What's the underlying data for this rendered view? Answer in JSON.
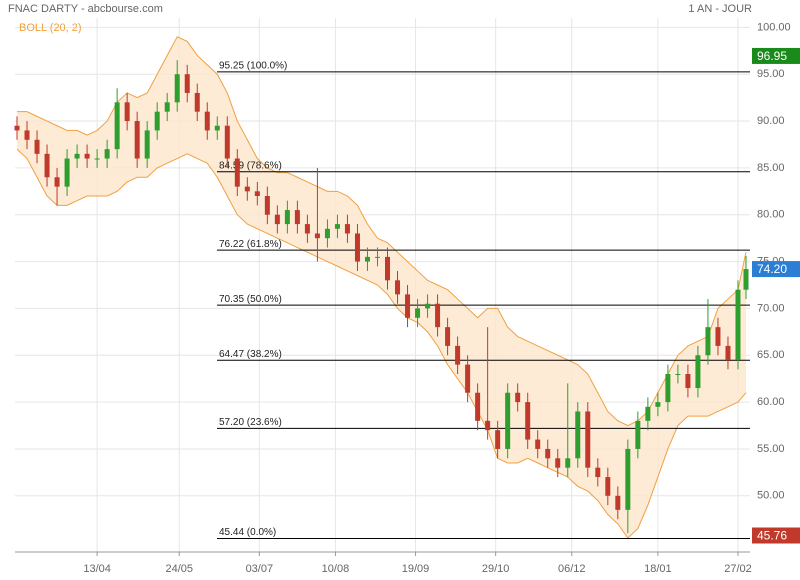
{
  "chart_data": {
    "type": "candlestick",
    "title": "FNAC DARTY - abcbourse.com",
    "period": "1 AN - JOUR",
    "indicator": {
      "name": "BOLL (20, 2)",
      "color": "#f0a040",
      "fill": "#fde6cc"
    },
    "up_color": "#2e9e2e",
    "down_color": "#c0392b",
    "grid": true,
    "xlim": [
      -41,
      326
    ],
    "xticks": [
      {
        "value": 0,
        "label": "13/04"
      },
      {
        "value": 41,
        "label": "24/05"
      },
      {
        "value": 81,
        "label": "03/07"
      },
      {
        "value": 119,
        "label": "10/08"
      },
      {
        "value": 159,
        "label": "19/09"
      },
      {
        "value": 199,
        "label": "29/10"
      },
      {
        "value": 237,
        "label": "06/12"
      },
      {
        "value": 280,
        "label": "18/01"
      },
      {
        "value": 320,
        "label": "27/02"
      }
    ],
    "ylim": [
      44,
      101
    ],
    "yticks": [
      {
        "value": 100,
        "label": "100.00"
      },
      {
        "value": 95,
        "label": "95.00"
      },
      {
        "value": 90,
        "label": "90.00"
      },
      {
        "value": 85,
        "label": "85.00"
      },
      {
        "value": 80,
        "label": "80.00"
      },
      {
        "value": 75,
        "label": "75.00"
      },
      {
        "value": 70,
        "label": "70.00"
      },
      {
        "value": 65,
        "label": "65.00"
      },
      {
        "value": 60,
        "label": "60.00"
      },
      {
        "value": 55,
        "label": "55.00"
      },
      {
        "value": 50,
        "label": "50.00"
      }
    ],
    "fib_levels": [
      {
        "value": 95.25,
        "label": "95.25  (100.0%)"
      },
      {
        "value": 84.59,
        "label": "84.59  (78.6%)"
      },
      {
        "value": 76.22,
        "label": "76.22  (61.8%)"
      },
      {
        "value": 70.35,
        "label": "70.35  (50.0%)"
      },
      {
        "value": 64.47,
        "label": "64.47  (38.2%)"
      },
      {
        "value": 57.2,
        "label": "57.20  (23.6%)"
      },
      {
        "value": 45.44,
        "label": "45.44  (0.0%)"
      }
    ],
    "badges": [
      {
        "value": 96.95,
        "label": "96.95",
        "color": "#1a8a1a"
      },
      {
        "value": 74.2,
        "label": "74.20",
        "color": "#2a7fd4"
      },
      {
        "value": 45.76,
        "label": "45.76",
        "color": "#c0392b"
      }
    ],
    "x": [
      -40,
      -35,
      -30,
      -25,
      -20,
      -15,
      -10,
      -5,
      0,
      5,
      10,
      15,
      20,
      25,
      30,
      35,
      40,
      45,
      50,
      55,
      60,
      65,
      70,
      75,
      80,
      85,
      90,
      95,
      100,
      105,
      110,
      115,
      120,
      125,
      130,
      135,
      140,
      145,
      150,
      155,
      160,
      165,
      170,
      175,
      180,
      185,
      190,
      195,
      200,
      205,
      210,
      215,
      220,
      225,
      230,
      235,
      240,
      245,
      250,
      255,
      260,
      265,
      270,
      275,
      280,
      285,
      290,
      295,
      300,
      305,
      310,
      315,
      320,
      324
    ],
    "open": [
      89.5,
      89,
      88,
      86.5,
      84,
      83,
      86,
      86.5,
      86,
      86,
      87,
      92,
      90,
      86,
      89,
      91,
      92,
      95,
      93,
      91,
      89,
      89.5,
      86,
      83,
      82.5,
      82,
      80,
      79,
      80.5,
      79,
      78,
      77.5,
      78.5,
      79,
      78,
      75,
      75.5,
      75.5,
      73,
      71.5,
      69,
      70,
      70.5,
      68,
      66,
      64,
      61,
      58,
      57,
      55,
      61,
      60,
      56,
      55,
      54,
      53,
      54,
      59,
      53,
      52,
      50,
      48.5,
      55,
      58,
      59.5,
      60,
      63,
      63,
      61.5,
      65,
      68,
      66,
      64.5,
      72
    ],
    "high": [
      90.5,
      90,
      89,
      87.5,
      85,
      87,
      87.5,
      87.5,
      87,
      88,
      93.5,
      93,
      91,
      90,
      92,
      93,
      96.5,
      96,
      94,
      92,
      90.5,
      90.5,
      87,
      84,
      83.5,
      83,
      81,
      81.5,
      81.5,
      80,
      85,
      79.5,
      80,
      80,
      79,
      76.5,
      76.5,
      76.5,
      74,
      72.5,
      71,
      71.5,
      71.5,
      69,
      67,
      65,
      62,
      68,
      58,
      62,
      62,
      61,
      57,
      56,
      55,
      62,
      60,
      60,
      54,
      53,
      51,
      56,
      59,
      60.5,
      61,
      64,
      64,
      64,
      66,
      71,
      69,
      67,
      73,
      75.6
    ],
    "low": [
      88,
      87,
      85.5,
      83,
      81,
      82,
      85,
      85,
      85,
      85,
      86,
      89,
      85,
      85,
      88,
      90,
      91,
      92,
      90,
      88,
      88,
      85,
      82,
      81.5,
      81,
      79,
      78,
      78,
      78,
      77,
      75,
      76.5,
      77.5,
      77,
      74,
      74,
      74.5,
      72,
      70.5,
      68,
      68,
      69,
      67,
      65,
      63,
      60,
      57,
      56,
      54,
      54,
      59,
      55,
      54,
      53,
      52,
      52,
      53,
      52,
      51,
      49,
      47.5,
      46,
      54,
      57,
      58.5,
      59,
      62,
      60.5,
      60.5,
      64,
      65,
      63.5,
      63.5,
      71
    ],
    "close": [
      89,
      88,
      86.5,
      84,
      83,
      86,
      86.5,
      86,
      86,
      87,
      92,
      90,
      86,
      89,
      91,
      92,
      95,
      93,
      91,
      89,
      89.5,
      86,
      83,
      82.5,
      82,
      80,
      79,
      80.5,
      79,
      78,
      77.5,
      78.5,
      79,
      78,
      75,
      75.5,
      75.5,
      73,
      71.5,
      69,
      70,
      70.5,
      68,
      66,
      64,
      61,
      58,
      57,
      55,
      61,
      60,
      56,
      55,
      54,
      53,
      54,
      59,
      53,
      52,
      50,
      48.5,
      55,
      58,
      59.5,
      60,
      63,
      63,
      61.5,
      65,
      68,
      66,
      64.5,
      72,
      74.2
    ],
    "bollinger": {
      "upper": [
        91,
        91,
        90.5,
        90,
        89.5,
        89,
        89,
        88.5,
        89,
        90,
        92,
        93,
        92.5,
        93,
        95,
        97,
        99,
        98.5,
        97,
        96,
        95,
        93,
        90,
        88,
        86,
        85,
        84.5,
        84.5,
        84,
        83.5,
        83,
        82.5,
        82.5,
        82,
        81,
        79,
        77.5,
        77,
        76,
        75,
        74,
        73,
        72.5,
        72,
        71,
        70,
        69,
        70,
        70,
        68,
        67,
        66.5,
        66,
        65.5,
        65,
        64.5,
        64,
        63,
        61,
        59,
        58,
        57.5,
        58,
        59,
        61,
        63,
        65,
        66,
        66.5,
        67,
        70,
        71,
        72,
        76
      ],
      "lower": [
        87,
        86,
        84,
        82,
        81,
        81,
        81.5,
        82,
        82,
        82,
        82.5,
        83.5,
        84,
        84,
        85,
        85.5,
        86,
        86.5,
        86,
        85.5,
        84,
        82,
        80,
        79,
        78.5,
        78,
        77.5,
        77,
        76.5,
        76,
        75.5,
        75,
        74.5,
        74,
        73.5,
        73,
        72.5,
        71.5,
        70,
        69,
        68.5,
        67.5,
        66,
        64,
        62.5,
        61,
        59,
        57,
        54,
        53.5,
        53.5,
        54,
        53.5,
        53,
        52.5,
        52,
        51,
        50.5,
        49.5,
        48,
        47,
        45.5,
        46.5,
        49,
        52,
        55,
        57.5,
        58.5,
        58.5,
        58.5,
        59,
        59.5,
        60,
        61
      ]
    }
  }
}
